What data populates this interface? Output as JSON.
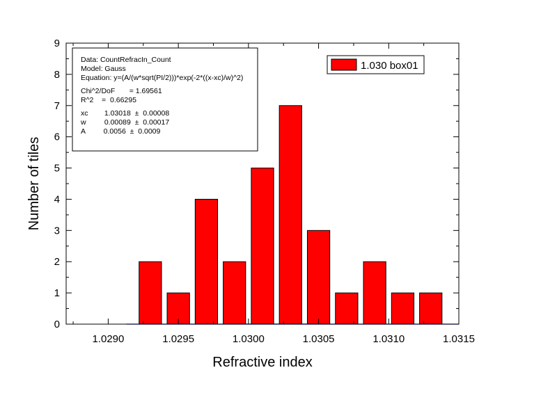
{
  "chart_data": {
    "type": "bar",
    "xlabel": "Refractive index",
    "ylabel": "Number of tiles",
    "xlim": [
      1.0287,
      1.0315
    ],
    "ylim": [
      0,
      9
    ],
    "x_ticks": [
      "1.0290",
      "1.0295",
      "1.0300",
      "1.0305",
      "1.0310",
      "1.0315"
    ],
    "y_ticks": [
      "0",
      "1",
      "2",
      "3",
      "4",
      "5",
      "6",
      "7",
      "8",
      "9"
    ],
    "bin_width": 0.0002,
    "series": [
      {
        "name": "1.030 box01",
        "color": "#ff0000",
        "bins": [
          {
            "x": 1.0293,
            "count": 2
          },
          {
            "x": 1.0295,
            "count": 1
          },
          {
            "x": 1.0297,
            "count": 4
          },
          {
            "x": 1.0299,
            "count": 2
          },
          {
            "x": 1.0301,
            "count": 5
          },
          {
            "x": 1.0303,
            "count": 7
          },
          {
            "x": 1.0305,
            "count": 3
          },
          {
            "x": 1.0307,
            "count": 1
          },
          {
            "x": 1.0309,
            "count": 2
          },
          {
            "x": 1.0311,
            "count": 1
          },
          {
            "x": 1.0313,
            "count": 1
          }
        ]
      }
    ],
    "fit": {
      "color": "#0000ff",
      "y0": 0,
      "xc": 1.03018,
      "w": 0.00089,
      "A": 0.0056,
      "x_range": [
        1.02913,
        1.0315
      ]
    },
    "legend": {
      "position": "top-right",
      "label": "1.030 box01"
    },
    "info_box": {
      "lines": [
        "Data: CountRefracIn_Count",
        "Model: Gauss",
        "Equation: y=(A/(w*sqrt(PI/2)))*exp(-2*((x-xc)/w)^2)",
        "",
        "Chi^2/DoF       = 1.69561",
        "R^2    =  0.66295",
        "",
        "xc        1.03018  ±  0.00008",
        "w         0.00089  ±  0.00017",
        "A         0.0056  ±  0.0009"
      ]
    }
  }
}
